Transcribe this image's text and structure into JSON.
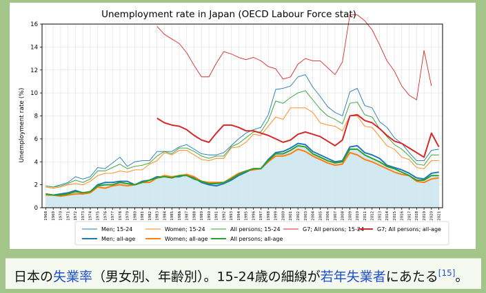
{
  "caption": {
    "p1": "日本の",
    "link1": "失業率",
    "p2": "（男女別、年齢別）。15-24歳の細線が",
    "link2": "若年失業者",
    "p3": "にあたる",
    "ref": "[15]",
    "p4": "。"
  },
  "colors": {
    "blue": "#1f77b4",
    "orange": "#ff7f0e",
    "green": "#2ca02c",
    "red": "#d62728",
    "fill": "#cde7f0",
    "background": "#a3c58a"
  },
  "chart_data": {
    "type": "line",
    "title": "Unemployment rate in Japan (OECD Labour Force stat)",
    "ylabel": "Unemployment rate (%)",
    "xlabel": "",
    "ylim": [
      0,
      16
    ],
    "yticks": [
      0,
      2,
      4,
      6,
      8,
      10,
      12,
      14,
      16
    ],
    "grid": true,
    "legend_position": "bottom",
    "x": [
      "1968",
      "1969",
      "1970",
      "1971",
      "1972",
      "1973",
      "1974",
      "1975",
      "1976",
      "1977",
      "1978",
      "1979",
      "1980",
      "1981",
      "1982",
      "1983",
      "1984",
      "1985",
      "1986",
      "1987",
      "1988",
      "1989",
      "1990",
      "1991",
      "1992",
      "1993",
      "1994",
      "1995",
      "1996",
      "1997",
      "1998",
      "1999",
      "2000",
      "2001",
      "2002",
      "2003",
      "2004",
      "2005",
      "2006",
      "2007",
      "2008",
      "2009",
      "2010",
      "2011",
      "2012",
      "2013",
      "2014",
      "2015",
      "2016",
      "2017",
      "2018",
      "2019",
      "2020",
      "2021"
    ],
    "series": [
      {
        "name": "Men; 15-24",
        "color": "#1f77b4",
        "width": 1,
        "values": [
          1.9,
          1.8,
          2.0,
          2.2,
          2.7,
          2.5,
          2.7,
          3.5,
          3.4,
          3.9,
          4.4,
          3.6,
          4.0,
          4.1,
          4.1,
          4.9,
          4.9,
          4.9,
          5.3,
          5.5,
          5.1,
          4.7,
          4.6,
          4.6,
          4.8,
          5.4,
          6.0,
          6.5,
          6.8,
          7.0,
          8.1,
          10.3,
          10.4,
          10.6,
          11.4,
          11.6,
          10.5,
          9.7,
          8.8,
          8.3,
          8.0,
          10.1,
          10.4,
          8.9,
          8.7,
          7.5,
          7.0,
          6.1,
          5.6,
          4.8,
          4.1,
          4.1,
          5.0,
          5.1
        ]
      },
      {
        "name": "Women; 15-24",
        "color": "#ff7f0e",
        "width": 1,
        "values": [
          1.8,
          1.7,
          1.8,
          2.0,
          2.1,
          2.0,
          2.3,
          2.8,
          3.0,
          3.0,
          3.2,
          3.1,
          3.3,
          3.3,
          3.8,
          4.1,
          4.8,
          4.6,
          5.0,
          5.0,
          4.6,
          4.2,
          4.1,
          4.3,
          4.3,
          5.2,
          5.3,
          5.7,
          6.4,
          6.3,
          7.1,
          7.9,
          7.7,
          8.7,
          8.7,
          8.7,
          8.3,
          7.4,
          7.2,
          7.1,
          6.7,
          8.0,
          8.0,
          7.1,
          7.0,
          6.2,
          5.4,
          5.1,
          4.4,
          4.2,
          3.5,
          3.4,
          4.1,
          4.1
        ]
      },
      {
        "name": "All persons; 15-24",
        "color": "#2ca02c",
        "width": 1,
        "values": [
          1.9,
          1.8,
          1.9,
          2.1,
          2.4,
          2.2,
          2.5,
          3.2,
          3.2,
          3.5,
          3.8,
          3.4,
          3.6,
          3.7,
          3.9,
          4.5,
          4.9,
          4.7,
          5.2,
          5.2,
          4.9,
          4.5,
          4.3,
          4.5,
          4.5,
          5.3,
          5.6,
          6.1,
          6.6,
          6.6,
          7.6,
          9.3,
          9.1,
          9.6,
          10.0,
          10.2,
          9.4,
          8.6,
          8.0,
          7.7,
          7.3,
          9.1,
          9.2,
          8.1,
          7.9,
          6.9,
          6.2,
          5.5,
          5.1,
          4.5,
          3.8,
          3.7,
          4.6,
          4.6
        ]
      },
      {
        "name": "G7; All persons; 15-24",
        "color": "#d62728",
        "width": 1,
        "values": [
          null,
          null,
          null,
          null,
          null,
          null,
          null,
          null,
          null,
          null,
          null,
          null,
          null,
          null,
          null,
          15.8,
          15.1,
          14.7,
          14.3,
          13.5,
          12.4,
          11.4,
          11.4,
          12.6,
          13.6,
          13.4,
          13.1,
          12.9,
          13.1,
          12.8,
          12.3,
          12.1,
          11.2,
          11.4,
          12.5,
          13.0,
          12.8,
          12.8,
          12.2,
          11.6,
          12.7,
          16.8,
          16.8,
          16.3,
          15.5,
          14.2,
          12.8,
          11.9,
          10.6,
          9.8,
          9.4,
          13.7,
          10.6,
          null
        ]
      },
      {
        "name": "G7; All persons; all-age",
        "color": "#d62728",
        "width": 2,
        "values": [
          null,
          null,
          null,
          null,
          null,
          null,
          null,
          null,
          null,
          null,
          null,
          null,
          null,
          null,
          null,
          7.8,
          7.4,
          7.2,
          7.1,
          6.8,
          6.3,
          5.9,
          5.7,
          6.5,
          7.2,
          7.2,
          7.0,
          6.7,
          6.7,
          6.5,
          6.3,
          6.0,
          5.7,
          5.9,
          6.4,
          6.6,
          6.4,
          6.2,
          5.8,
          5.4,
          5.9,
          8.0,
          8.1,
          7.6,
          7.4,
          6.9,
          6.3,
          5.8,
          5.6,
          5.2,
          4.8,
          4.4,
          6.5,
          5.3
        ]
      },
      {
        "name": "Men; all-age",
        "color": "#1f77b4",
        "width": 2,
        "values": [
          1.2,
          1.1,
          1.2,
          1.3,
          1.5,
          1.3,
          1.4,
          2.0,
          2.2,
          2.2,
          2.3,
          2.3,
          2.0,
          2.3,
          2.4,
          2.7,
          2.7,
          2.7,
          2.7,
          2.9,
          2.6,
          2.2,
          2.0,
          1.9,
          2.1,
          2.4,
          2.8,
          3.1,
          3.4,
          3.4,
          4.2,
          4.8,
          4.9,
          5.2,
          5.6,
          5.5,
          4.9,
          4.6,
          4.3,
          4.0,
          4.1,
          5.3,
          5.4,
          4.8,
          4.6,
          4.3,
          3.7,
          3.5,
          3.3,
          3.0,
          2.6,
          2.5,
          3.0,
          3.1
        ]
      },
      {
        "name": "Women; all-age",
        "color": "#ff7f0e",
        "width": 2,
        "values": [
          1.1,
          1.1,
          1.0,
          1.1,
          1.2,
          1.2,
          1.3,
          1.8,
          1.7,
          1.9,
          2.0,
          1.9,
          2.0,
          2.2,
          2.2,
          2.6,
          2.8,
          2.7,
          2.8,
          2.9,
          2.7,
          2.3,
          2.2,
          2.2,
          2.2,
          2.6,
          3.0,
          3.2,
          3.3,
          3.4,
          4.0,
          4.5,
          4.5,
          4.7,
          5.1,
          4.9,
          4.5,
          4.2,
          3.9,
          3.7,
          3.8,
          4.8,
          4.6,
          4.2,
          4.0,
          3.7,
          3.4,
          3.1,
          2.9,
          2.8,
          2.3,
          2.2,
          2.5,
          2.6
        ]
      },
      {
        "name": "All persons; all-age",
        "color": "#2ca02c",
        "width": 2,
        "values": [
          1.2,
          1.1,
          1.1,
          1.2,
          1.4,
          1.3,
          1.4,
          1.9,
          2.0,
          2.0,
          2.2,
          2.1,
          2.0,
          2.2,
          2.4,
          2.6,
          2.7,
          2.6,
          2.8,
          2.8,
          2.5,
          2.3,
          2.1,
          2.1,
          2.2,
          2.5,
          2.9,
          3.2,
          3.4,
          3.4,
          4.1,
          4.7,
          4.7,
          5.0,
          5.4,
          5.3,
          4.7,
          4.4,
          4.1,
          3.9,
          4.0,
          5.1,
          5.1,
          4.6,
          4.3,
          4.0,
          3.6,
          3.4,
          3.1,
          2.8,
          2.4,
          2.4,
          2.8,
          2.8
        ]
      }
    ],
    "fill_under": "All persons; all-age",
    "legend": [
      "Men; 15-24",
      "Women; 15-24",
      "All persons; 15-24",
      "G7; All persons; 15-24",
      "G7; All persons; all-age",
      "Men; all-age",
      "Women; all-age",
      "All persons; all-age"
    ]
  }
}
